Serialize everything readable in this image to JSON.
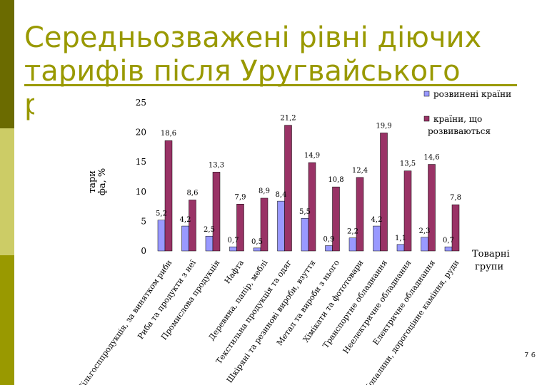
{
  "slide": {
    "title_lines": [
      "Середньозважені рівні діючих",
      "тарифів після Уругвайського",
      "р"
    ],
    "page_number": "7 6"
  },
  "colors": {
    "accent_dark": "#6b6b00",
    "accent_light": "#cccc66",
    "accent_mid": "#999900",
    "developed": "#9999ff",
    "developing": "#993366"
  },
  "chart_data": {
    "type": "bar",
    "ylabel_lines": [
      "тари",
      "фа, %"
    ],
    "xlabel_lines": [
      "Товарні",
      "групи"
    ],
    "ylim": [
      0,
      25
    ],
    "yticks": [
      0,
      5,
      10,
      15,
      20,
      25
    ],
    "grid": false,
    "legend_position": "right",
    "categories": [
      "Сільгосппродукція, за винятком риби",
      "Риба та продукти з неї",
      "Промислова продукція",
      "Нафта",
      "Деревина, папір, меблі",
      "Текстильна продукція та одяг",
      "Шкіряні та резинові вироби, взуття",
      "Метал та вироби з нього",
      "Хімікати та фототовари",
      "Транспортне обладнання",
      "Неелектричне обладнання",
      "Електричне обладнання",
      "Копалини, дорогоцінне каміння, руди"
    ],
    "series": [
      {
        "name": "розвинені країни",
        "values": [
          5.2,
          4.2,
          2.5,
          0.7,
          0.5,
          8.4,
          5.5,
          0.9,
          2.2,
          4.2,
          1.1,
          2.3,
          0.7
        ],
        "labels": [
          "5,2",
          "4,2",
          "2,5",
          "0,7",
          "0,5",
          "8,4",
          "5,5",
          "0,9",
          "2,2",
          "4,2",
          "1,1",
          "2,3",
          "0,7"
        ]
      },
      {
        "name": "країни, що розвиваються",
        "legend_lines": [
          "країни, що",
          "розвиваються"
        ],
        "values": [
          18.6,
          8.6,
          13.3,
          7.9,
          8.9,
          21.2,
          14.9,
          10.8,
          12.4,
          19.9,
          13.5,
          14.6,
          7.8
        ],
        "labels": [
          "18,6",
          "8,6",
          "13,3",
          "7,9",
          "8,9",
          "21,2",
          "14,9",
          "10,8",
          "12,4",
          "19,9",
          "13,5",
          "14,6",
          "7,8"
        ]
      }
    ]
  }
}
